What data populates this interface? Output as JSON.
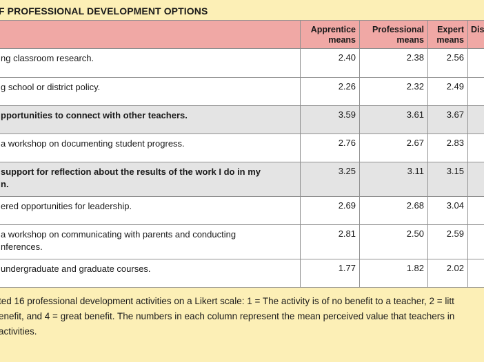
{
  "title": "F PROFESSIONAL DEVELOPMENT OPTIONS",
  "table": {
    "headers": {
      "col1": "",
      "apprentice": [
        "Apprentice",
        "means"
      ],
      "professional": [
        "Professional",
        "means"
      ],
      "expert": [
        "Expert",
        "means"
      ],
      "last": "Dis"
    },
    "rows": [
      {
        "lines": [
          "ng classroom research."
        ],
        "apprentice": "2.40",
        "professional": "2.38",
        "expert": "2.56",
        "shaded": false,
        "bold": false
      },
      {
        "lines": [
          "g school or district policy."
        ],
        "apprentice": "2.26",
        "professional": "2.32",
        "expert": "2.49",
        "shaded": false,
        "bold": false
      },
      {
        "lines": [
          "pportunities to connect with other teachers."
        ],
        "apprentice": "3.59",
        "professional": "3.61",
        "expert": "3.67",
        "shaded": true,
        "bold": true
      },
      {
        "lines": [
          "a workshop on documenting student progress."
        ],
        "apprentice": "2.76",
        "professional": "2.67",
        "expert": "2.83",
        "shaded": false,
        "bold": false
      },
      {
        "lines": [
          "support for reflection about the results of the work I do in my",
          "n."
        ],
        "apprentice": "3.25",
        "professional": "3.11",
        "expert": "3.15",
        "shaded": true,
        "bold": true
      },
      {
        "lines": [
          "ered opportunities for leadership."
        ],
        "apprentice": "2.69",
        "professional": "2.68",
        "expert": "3.04",
        "shaded": false,
        "bold": false
      },
      {
        "lines": [
          "a workshop on communicating with parents and conducting",
          "nferences."
        ],
        "apprentice": "2.81",
        "professional": "2.50",
        "expert": "2.59",
        "shaded": false,
        "bold": false
      },
      {
        "lines": [
          "undergraduate and graduate courses."
        ],
        "apprentice": "1.77",
        "professional": "1.82",
        "expert": "2.02",
        "shaded": false,
        "bold": false
      }
    ]
  },
  "note": {
    "lines": [
      "ted 16 professional development activities on a Likert scale: 1 = The activity is of no benefit to a teacher, 2 = litt",
      "enefit, and 4 = great benefit. The numbers in each column represent the mean perceived value that teachers in",
      " activities."
    ]
  }
}
